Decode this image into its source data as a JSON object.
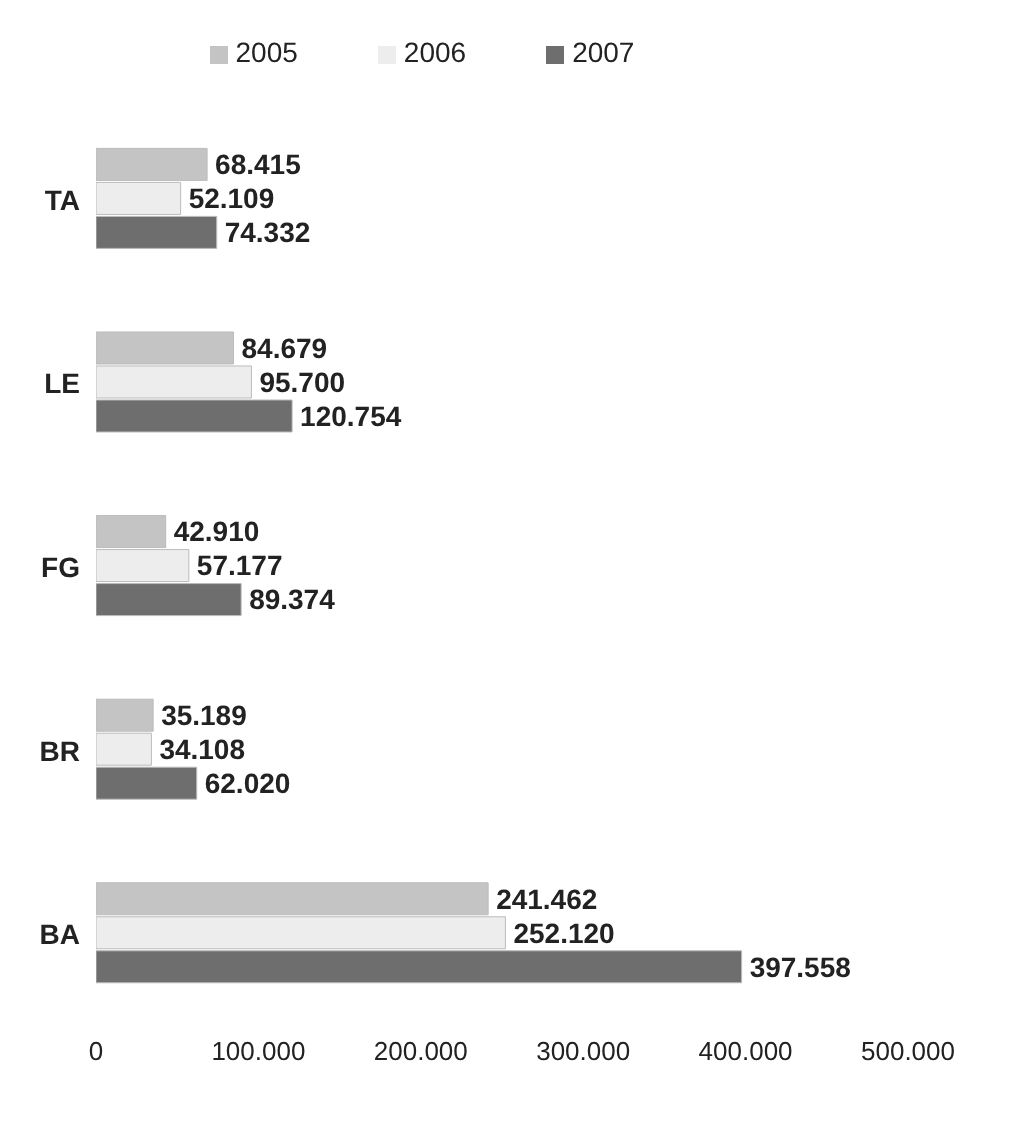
{
  "chart_data": {
    "type": "bar",
    "orientation": "horizontal",
    "categories": [
      "TA",
      "LE",
      "FG",
      "BR",
      "BA"
    ],
    "series": [
      {
        "name": "2005",
        "color": "#c4c4c4",
        "values": [
          68415,
          84679,
          42910,
          35189,
          241462
        ],
        "value_labels": [
          "68.415",
          "84.679",
          "42.910",
          "35.189",
          "241.462"
        ]
      },
      {
        "name": "2006",
        "color": "#ededed",
        "values": [
          52109,
          95700,
          57177,
          34108,
          252120
        ],
        "value_labels": [
          "52.109",
          "95.700",
          "57.177",
          "34.108",
          "252.120"
        ]
      },
      {
        "name": "2007",
        "color": "#6e6e6e",
        "values": [
          74332,
          120754,
          89374,
          62020,
          397558
        ],
        "value_labels": [
          "74.332",
          "120.754",
          "89.374",
          "62.020",
          "397.558"
        ]
      }
    ],
    "xlim": [
      0,
      500000
    ],
    "xticks": [
      0,
      {
        "value": 100000,
        "label": "100.000"
      },
      {
        "value": 200000,
        "label": "200.000"
      },
      {
        "value": 300000,
        "label": "300.000"
      },
      {
        "value": 400000,
        "label": "400.000"
      },
      {
        "value": 500000,
        "label": "500.000"
      }
    ],
    "grid": false,
    "legend": "top"
  }
}
